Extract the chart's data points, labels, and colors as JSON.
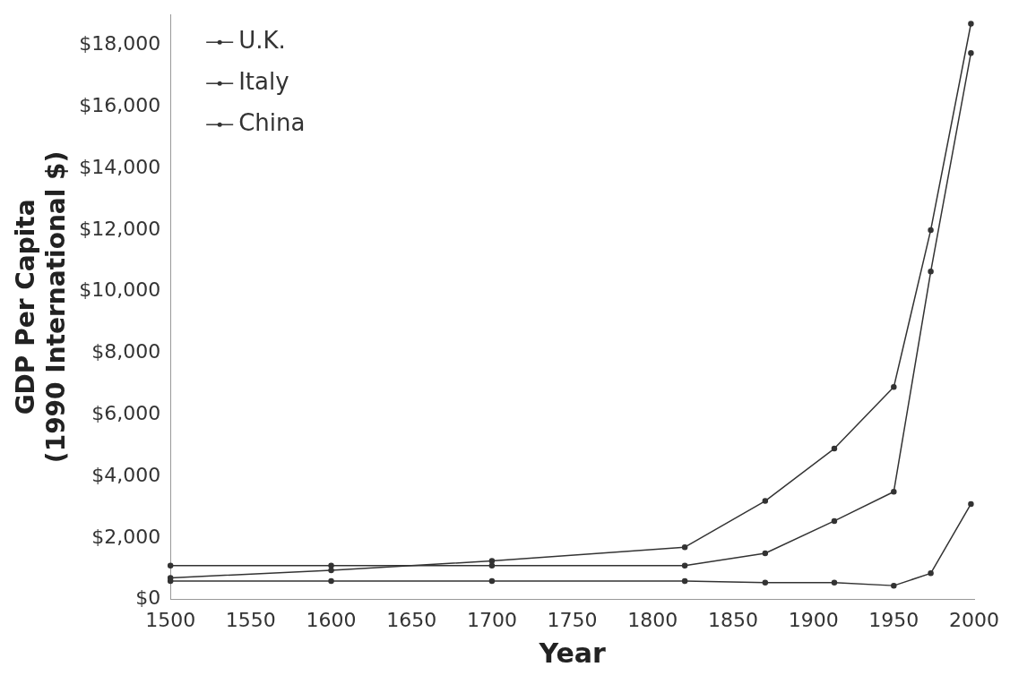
{
  "chart_data": {
    "type": "line",
    "xlabel": "Year",
    "ylabel": "GDP Per Capita\n(1990 International $)",
    "xlim": [
      1500,
      2000
    ],
    "xticks": [
      1500,
      1550,
      1600,
      1650,
      1700,
      1750,
      1800,
      1850,
      1900,
      1950,
      2000
    ],
    "ylim": [
      0,
      19000
    ],
    "yticks": [
      {
        "value": 0,
        "label": "$0"
      },
      {
        "value": 2000,
        "label": "$2,000"
      },
      {
        "value": 4000,
        "label": "$4,000"
      },
      {
        "value": 6000,
        "label": "$6,000"
      },
      {
        "value": 8000,
        "label": "$8,000"
      },
      {
        "value": 10000,
        "label": "$10,000"
      },
      {
        "value": 12000,
        "label": "$12,000"
      },
      {
        "value": 14000,
        "label": "$14,000"
      },
      {
        "value": 16000,
        "label": "$16,000"
      },
      {
        "value": 18000,
        "label": "$18,000"
      }
    ],
    "x": [
      1500,
      1600,
      1700,
      1820,
      1870,
      1913,
      1950,
      1973,
      1998
    ],
    "series": [
      {
        "name": "U.K.",
        "color": "#333333",
        "values": [
          700,
          950,
          1250,
          1700,
          3200,
          4900,
          6900,
          12000,
          18700
        ]
      },
      {
        "name": "Italy",
        "color": "#333333",
        "values": [
          1100,
          1100,
          1100,
          1100,
          1500,
          2550,
          3500,
          10650,
          17750
        ]
      },
      {
        "name": "China",
        "color": "#333333",
        "values": [
          600,
          600,
          600,
          600,
          550,
          550,
          450,
          850,
          3100
        ]
      }
    ],
    "grid": false,
    "legend": "top left",
    "marker": "circle",
    "line_style": "solid"
  }
}
